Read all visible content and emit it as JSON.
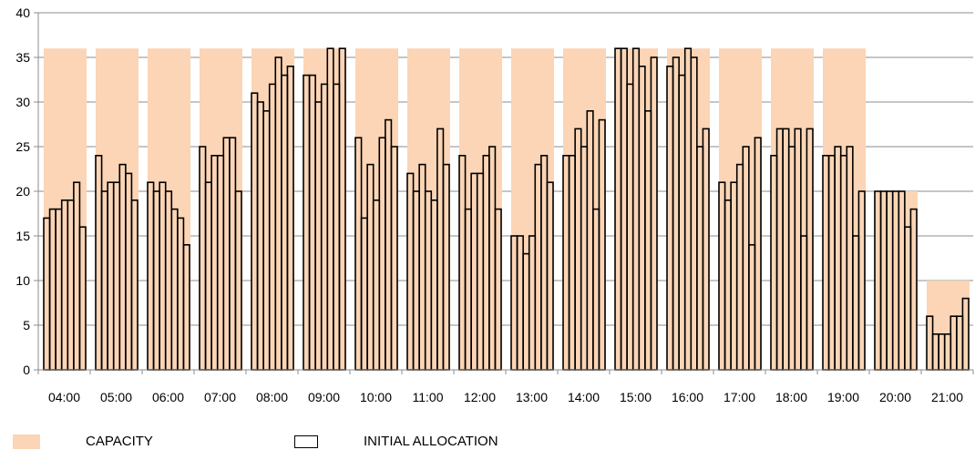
{
  "chart_data": {
    "type": "bar",
    "categories": [
      "04:00",
      "05:00",
      "06:00",
      "07:00",
      "08:00",
      "09:00",
      "10:00",
      "11:00",
      "12:00",
      "13:00",
      "14:00",
      "15:00",
      "16:00",
      "17:00",
      "18:00",
      "19:00",
      "20:00",
      "21:00"
    ],
    "ylim": [
      0,
      40
    ],
    "yticks": [
      0,
      5,
      10,
      15,
      20,
      25,
      30,
      35,
      40
    ],
    "grid": true,
    "legend_position": "bottom",
    "series": [
      {
        "name": "CAPACITY",
        "color": "#fbd5b5",
        "values": [
          36,
          36,
          36,
          36,
          36,
          36,
          36,
          36,
          36,
          36,
          36,
          36,
          36,
          36,
          36,
          36,
          20,
          10
        ]
      },
      {
        "name": "INITIAL ALLOCATION",
        "style": "outlined-bars",
        "values": [
          [
            17,
            18,
            18,
            19,
            19,
            21,
            16
          ],
          [
            24,
            20,
            21,
            21,
            23,
            22,
            19
          ],
          [
            21,
            20,
            21,
            20,
            18,
            17,
            14
          ],
          [
            25,
            21,
            24,
            24,
            26,
            26,
            20
          ],
          [
            31,
            30,
            29,
            32,
            35,
            33,
            34
          ],
          [
            33,
            33,
            30,
            32,
            36,
            32,
            36
          ],
          [
            26,
            17,
            23,
            19,
            26,
            28,
            25
          ],
          [
            22,
            20,
            23,
            20,
            19,
            27,
            23
          ],
          [
            24,
            18,
            22,
            22,
            24,
            25,
            18
          ],
          [
            15,
            15,
            13,
            15,
            23,
            24,
            21
          ],
          [
            24,
            24,
            27,
            25,
            29,
            18,
            28
          ],
          [
            36,
            36,
            32,
            36,
            34,
            29,
            35
          ],
          [
            34,
            35,
            33,
            36,
            35,
            25,
            27
          ],
          [
            21,
            19,
            21,
            23,
            25,
            14,
            26
          ],
          [
            24,
            27,
            27,
            25,
            27,
            15,
            27
          ],
          [
            24,
            24,
            25,
            24,
            25,
            15,
            20
          ],
          [
            20,
            20,
            20,
            20,
            20,
            16,
            18
          ],
          [
            6,
            4,
            4,
            4,
            6,
            6,
            8
          ]
        ]
      }
    ]
  }
}
